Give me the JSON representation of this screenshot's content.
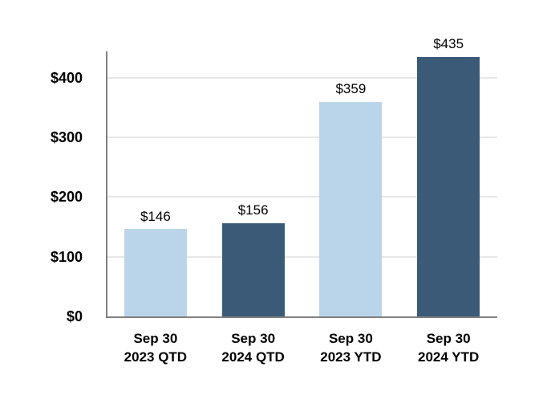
{
  "chart_data": {
    "type": "bar",
    "title": "",
    "xlabel": "",
    "ylabel": "",
    "categories": [
      {
        "line1": "Sep 30",
        "line2": "2023 QTD"
      },
      {
        "line1": "Sep 30",
        "line2": "2024 QTD"
      },
      {
        "line1": "Sep 30",
        "line2": "2023 YTD"
      },
      {
        "line1": "Sep 30",
        "line2": "2024 YTD"
      }
    ],
    "values": [
      146,
      156,
      359,
      435
    ],
    "value_labels": [
      "$146",
      "$156",
      "$359",
      "$435"
    ],
    "bar_colors": [
      "#BAD5E9",
      "#3A5A78",
      "#BAD5E9",
      "#3A5A78"
    ],
    "yticks": [
      {
        "value": 0,
        "label": "$0"
      },
      {
        "value": 100,
        "label": "$100"
      },
      {
        "value": 200,
        "label": "$200"
      },
      {
        "value": 300,
        "label": "$300"
      },
      {
        "value": 400,
        "label": "$400"
      }
    ],
    "ylim": [
      0,
      444
    ],
    "grid": true,
    "legend_position": "none",
    "colors": {
      "light_blue": "#BAD5E9",
      "dark_blue": "#3A5A78",
      "gridline": "#E7E7E7",
      "axis_line": "#7F7F7F",
      "text": "#000000",
      "background": "#FFFFFF"
    }
  }
}
